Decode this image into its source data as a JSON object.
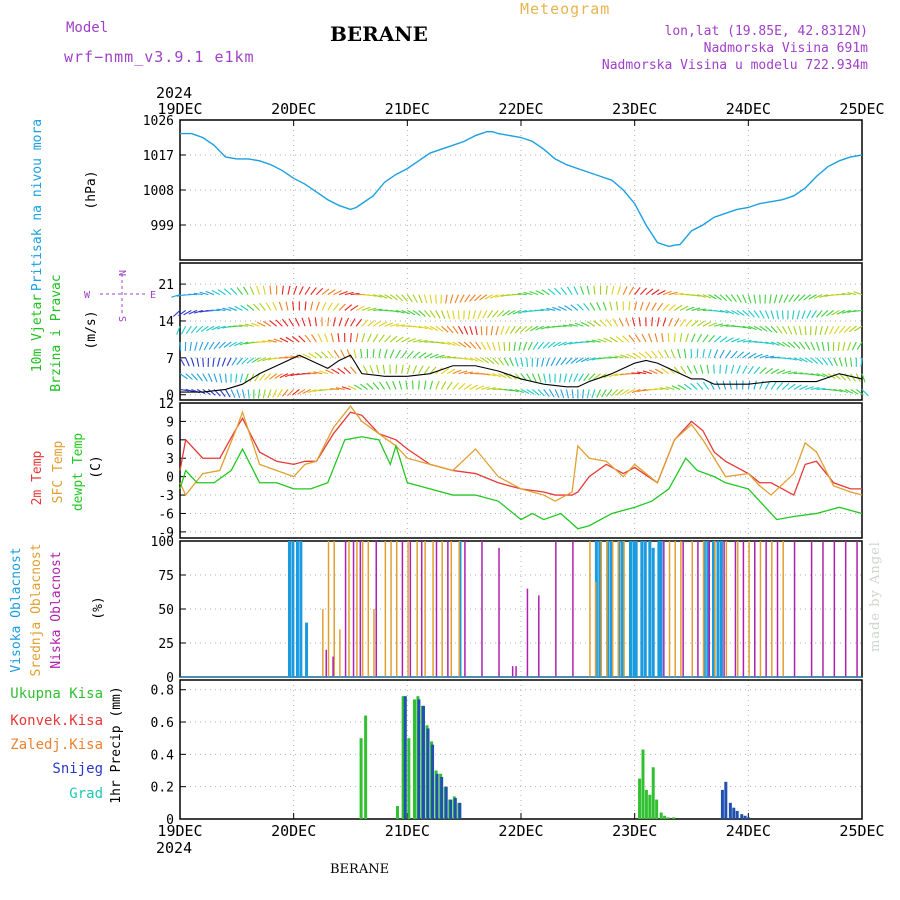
{
  "header": {
    "model_label": "Model",
    "model_name": "wrf−nmm_v3.9.1  e1km",
    "station": "BERANE",
    "meteogram": "Meteogram",
    "coords": "lon,lat (19.85E, 42.8312N)",
    "altitude": "Nadmorska Visina 691m",
    "model_altitude": "Nadmorska Visina u modelu 722.934m"
  },
  "footer": {
    "station": "BERANE",
    "signature": "made by Angel"
  },
  "colors": {
    "pressure": "#1aa0e0",
    "temp2m": "#e83838",
    "sfc": "#e0a030",
    "dewpt": "#20c820",
    "high_cloud": "#1a9be0",
    "mid_cloud": "#e0a030",
    "low_cloud": "#b020b0",
    "rain_total": "#30c030",
    "snow": "#2050b0",
    "grid": "#b0b0b0"
  },
  "chart_data": [
    {
      "type": "line",
      "ylabel": "Pritisak na nivou mora",
      "unit": "(hPa)",
      "ylim": [
        990,
        1026
      ],
      "yticks": [
        999,
        1008,
        1017,
        1026
      ],
      "x_start_year": "2024",
      "x_end_year": "2024",
      "x_ticks": [
        "19DEC",
        "20DEC",
        "21DEC",
        "22DEC",
        "23DEC",
        "24DEC",
        "25DEC"
      ],
      "series": [
        {
          "x": [
            0,
            0.1,
            0.2,
            0.3,
            0.4,
            0.5,
            0.6,
            0.7,
            0.8,
            0.9,
            1.0,
            1.1,
            1.2,
            1.3,
            1.4,
            1.5,
            1.55,
            1.6,
            1.7,
            1.8,
            1.9,
            2.0,
            2.1,
            2.2,
            2.3,
            2.4,
            2.5,
            2.6,
            2.7,
            2.75,
            2.8,
            2.9,
            3.0,
            3.1,
            3.2,
            3.3,
            3.4,
            3.5,
            3.6,
            3.7,
            3.8,
            3.9,
            4.0,
            4.1,
            4.2,
            4.3,
            4.35,
            4.4,
            4.5,
            4.6,
            4.7,
            4.8,
            4.9,
            5.0,
            5.1,
            5.2,
            5.3,
            5.4,
            5.5,
            5.6,
            5.7,
            5.8,
            5.9,
            6.0
          ],
          "values": [
            1022.5,
            1022.5,
            1021.5,
            1019.5,
            1016.5,
            1016,
            1016,
            1015.5,
            1014.5,
            1013,
            1011,
            1009.5,
            1007.5,
            1005.5,
            1004,
            1003,
            1003.5,
            1004.5,
            1006.5,
            1010,
            1012,
            1013.5,
            1015.5,
            1017.5,
            1018.5,
            1019.5,
            1020.5,
            1022,
            1023,
            1023,
            1022.5,
            1022,
            1021.5,
            1020.5,
            1018.5,
            1016,
            1014.5,
            1013.5,
            1012.5,
            1011.5,
            1010.5,
            1008,
            1004.5,
            999,
            994.5,
            993.5,
            993.8,
            994,
            997.5,
            999,
            1001,
            1002,
            1003,
            1003.5,
            1004.5,
            1005,
            1005.5,
            1006.5,
            1008.5,
            1011.5,
            1014,
            1015.5,
            1016.5,
            1017
          ]
        }
      ]
    },
    {
      "type": "line",
      "ylabel": "10m Vjetar",
      "ylabel2": "Brzina i Pravac",
      "unit": "(m/s)",
      "compass": {
        "n": "N",
        "e": "E",
        "w": "W",
        "s": "S"
      },
      "ylim": [
        -1,
        25
      ],
      "yticks": [
        0,
        7,
        14,
        21
      ],
      "series": [
        {
          "x": [
            0,
            0.2,
            0.4,
            0.55,
            0.7,
            0.8,
            0.9,
            1.0,
            1.05,
            1.1,
            1.2,
            1.3,
            1.4,
            1.5,
            1.6,
            1.8,
            2.0,
            2.2,
            2.4,
            2.6,
            2.8,
            3.0,
            3.2,
            3.4,
            3.5,
            3.6,
            3.8,
            3.9,
            4.0,
            4.1,
            4.2,
            4.3,
            4.4,
            4.5,
            4.6,
            4.7,
            4.8,
            5.0,
            5.2,
            5.4,
            5.6,
            5.8,
            6.0
          ],
          "values": [
            0.5,
            0.5,
            1,
            2,
            4,
            5,
            6,
            7,
            7.5,
            7,
            6,
            5,
            6.5,
            7.5,
            4,
            3.5,
            3.5,
            4,
            5.5,
            5.5,
            4.5,
            3,
            2,
            1.5,
            1.5,
            2.5,
            4,
            5,
            6,
            6.5,
            6,
            5,
            4,
            3,
            3,
            2,
            2,
            2,
            2.5,
            2.5,
            2.5,
            4,
            3
          ]
        }
      ]
    },
    {
      "type": "line",
      "ylabel": "2m Temp",
      "ylabel2": "SFC Temp",
      "ylabel3": "dewpt Temp",
      "unit": "(C)",
      "ylim": [
        -10,
        12
      ],
      "yticks": [
        -9,
        -6,
        -3,
        0,
        3,
        6,
        9,
        12
      ],
      "series": [
        {
          "name": "2m Temp",
          "x": [
            0,
            0.05,
            0.2,
            0.35,
            0.5,
            0.55,
            0.7,
            0.85,
            1.0,
            1.1,
            1.2,
            1.35,
            1.5,
            1.6,
            1.75,
            1.9,
            2.0,
            2.2,
            2.4,
            2.6,
            2.8,
            3.0,
            3.2,
            3.3,
            3.45,
            3.5,
            3.6,
            3.75,
            3.9,
            4.0,
            4.2,
            4.35,
            4.5,
            4.6,
            4.7,
            4.8,
            5.0,
            5.1,
            5.2,
            5.4,
            5.5,
            5.6,
            5.75,
            5.9,
            6.0
          ],
          "values": [
            1,
            6,
            3,
            3,
            8,
            9.5,
            4,
            2.5,
            2,
            2.5,
            2.5,
            7,
            10.5,
            10,
            7,
            6,
            4.5,
            2,
            1,
            0.5,
            -1,
            -2,
            -2.5,
            -3,
            -3,
            -2.5,
            0,
            2,
            0.5,
            1.5,
            -1,
            6,
            9,
            7.5,
            4,
            2.5,
            0.5,
            -1,
            -1,
            -3,
            2,
            2.5,
            -1,
            -2,
            -2
          ]
        },
        {
          "name": "SFC Temp",
          "x": [
            0,
            0.05,
            0.2,
            0.35,
            0.5,
            0.55,
            0.7,
            0.85,
            1.0,
            1.1,
            1.2,
            1.35,
            1.5,
            1.6,
            1.75,
            1.9,
            2.0,
            2.2,
            2.4,
            2.6,
            2.8,
            3.0,
            3.2,
            3.3,
            3.45,
            3.5,
            3.6,
            3.75,
            3.9,
            4.0,
            4.2,
            4.35,
            4.5,
            4.6,
            4.7,
            4.8,
            5.0,
            5.1,
            5.2,
            5.4,
            5.5,
            5.6,
            5.75,
            5.9,
            6.0
          ],
          "values": [
            -1,
            -3,
            0.5,
            1,
            8,
            10.5,
            2,
            1,
            0,
            2,
            2.5,
            8,
            11.5,
            9,
            7,
            5,
            3,
            2,
            1,
            4.5,
            0,
            -2,
            -3,
            -4,
            -2.5,
            5,
            3,
            2.5,
            0,
            2,
            -1,
            6,
            8.5,
            6,
            3,
            0,
            0.5,
            -1.5,
            -3,
            0.5,
            5.5,
            4,
            -1.5,
            -2.5,
            -3
          ]
        },
        {
          "name": "dewpt Temp",
          "x": [
            0,
            0.05,
            0.15,
            0.3,
            0.45,
            0.55,
            0.7,
            0.85,
            1.0,
            1.15,
            1.3,
            1.45,
            1.6,
            1.75,
            1.85,
            1.9,
            2.0,
            2.2,
            2.4,
            2.6,
            2.8,
            3.0,
            3.1,
            3.2,
            3.35,
            3.5,
            3.6,
            3.8,
            4.0,
            4.15,
            4.3,
            4.45,
            4.55,
            4.7,
            4.8,
            5.0,
            5.1,
            5.25,
            5.4,
            5.6,
            5.8,
            6.0
          ],
          "values": [
            -2,
            1,
            -1,
            -1,
            1,
            4.5,
            -1,
            -1,
            -2,
            -2,
            -1,
            6,
            6.5,
            6,
            2,
            5,
            -1,
            -2,
            -3,
            -3,
            -4,
            -7,
            -6,
            -7,
            -6,
            -8.5,
            -8,
            -6,
            -5,
            -4,
            -2,
            3,
            1,
            0,
            -1,
            -2,
            -4,
            -7,
            -6.5,
            -6,
            -5,
            -6
          ]
        }
      ]
    },
    {
      "type": "bar",
      "ylabel": "Visoka Oblacnost",
      "ylabel2": "Srednja Oblacnost",
      "ylabel3": "Niska Oblacnost",
      "unit": "(%)",
      "ylim": [
        0,
        100
      ],
      "yticks": [
        0,
        25,
        50,
        75,
        100
      ],
      "series": [
        {
          "name": "Visoka Oblacnost",
          "x": [
            0.95,
            0.98,
            1.02,
            1.05,
            1.1,
            2.45,
            3.65,
            3.68,
            3.75,
            3.78,
            3.85,
            3.88,
            3.95,
            3.98,
            4.0,
            4.05,
            4.08,
            4.12,
            4.15,
            4.2,
            4.22,
            4.6,
            4.63,
            4.68,
            4.72,
            4.75
          ],
          "values": [
            100,
            100,
            100,
            100,
            40,
            100,
            100,
            100,
            100,
            100,
            100,
            100,
            100,
            100,
            100,
            100,
            100,
            100,
            95,
            100,
            100,
            100,
            100,
            100,
            100,
            100
          ]
        },
        {
          "name": "Srednja Oblacnost",
          "x": [
            1.25,
            1.3,
            1.35,
            1.4,
            1.48,
            1.55,
            1.6,
            1.65,
            1.7,
            1.8,
            1.85,
            1.9,
            2.0,
            2.08,
            2.15,
            2.22,
            2.3,
            2.38,
            2.45,
            3.6,
            3.65,
            3.7,
            3.75,
            3.8,
            3.85,
            3.9,
            4.3,
            4.35,
            4.4,
            4.5,
            4.6,
            4.7,
            4.8,
            4.9,
            5.0,
            5.1,
            5.2,
            5.3
          ],
          "values": [
            50,
            100,
            100,
            35,
            100,
            100,
            100,
            100,
            50,
            100,
            100,
            100,
            100,
            100,
            100,
            100,
            100,
            100,
            100,
            100,
            70,
            100,
            100,
            100,
            100,
            100,
            100,
            100,
            100,
            100,
            100,
            100,
            100,
            100,
            100,
            100,
            100,
            100
          ]
        },
        {
          "name": "Niska Oblacnost",
          "x": [
            1.28,
            1.34,
            1.45,
            1.52,
            1.58,
            1.72,
            1.95,
            2.02,
            2.12,
            2.25,
            2.35,
            2.5,
            2.65,
            2.8,
            2.92,
            2.95,
            3.05,
            3.15,
            3.3,
            3.45,
            4.25,
            4.42,
            4.55,
            4.65,
            4.78,
            4.88,
            4.95,
            5.05,
            5.15,
            5.25,
            5.4,
            5.55,
            5.65,
            5.75,
            5.85,
            5.95
          ],
          "values": [
            20,
            15,
            100,
            100,
            100,
            100,
            100,
            100,
            100,
            100,
            100,
            100,
            100,
            95,
            8,
            8,
            65,
            60,
            100,
            100,
            100,
            100,
            100,
            100,
            100,
            100,
            100,
            100,
            100,
            100,
            100,
            100,
            100,
            100,
            100,
            100
          ]
        }
      ]
    },
    {
      "type": "bar",
      "ylabel": "1hr Precip",
      "unit": "(mm)",
      "ylim": [
        0,
        0.86
      ],
      "yticks": [
        0,
        0.2,
        0.4,
        0.6,
        0.8
      ],
      "legend": [
        "Ukupna Kisa",
        "Konvek.Kisa",
        "Zaledj.Kisa",
        "Snijeg",
        "Grad"
      ],
      "legend_colors": [
        "#30c030",
        "#e83838",
        "#f08030",
        "#2838c8",
        "#20c8b0"
      ],
      "series": [
        {
          "name": "Ukupna Kisa",
          "x": [
            1.58,
            1.62,
            1.9,
            1.95,
            2.0,
            2.05,
            2.08,
            2.12,
            2.16,
            2.2,
            2.24,
            2.28,
            2.32,
            2.36,
            2.4,
            2.44,
            4.03,
            4.06,
            4.09,
            4.12,
            4.15,
            4.18,
            4.22,
            4.25,
            4.28,
            4.33
          ],
          "values": [
            0.5,
            0.64,
            0.08,
            0.76,
            0.5,
            0.74,
            0.76,
            0.7,
            0.58,
            0.48,
            0.3,
            0.28,
            0.2,
            0.12,
            0.14,
            0.1,
            0.25,
            0.43,
            0.18,
            0.15,
            0.32,
            0.12,
            0.04,
            0.02,
            0.01,
            0.01
          ]
        },
        {
          "name": "Snijeg",
          "x": [
            1.96,
            2.08,
            2.12,
            2.16,
            2.2,
            2.24,
            2.28,
            2.32,
            2.36,
            2.4,
            2.44,
            4.75,
            4.78,
            4.82,
            4.85,
            4.88,
            4.92,
            4.95,
            4.98
          ],
          "values": [
            0.76,
            0.74,
            0.7,
            0.56,
            0.46,
            0.28,
            0.26,
            0.2,
            0.12,
            0.13,
            0.1,
            0.18,
            0.23,
            0.1,
            0.07,
            0.05,
            0.03,
            0.02,
            0.01
          ]
        }
      ]
    }
  ]
}
